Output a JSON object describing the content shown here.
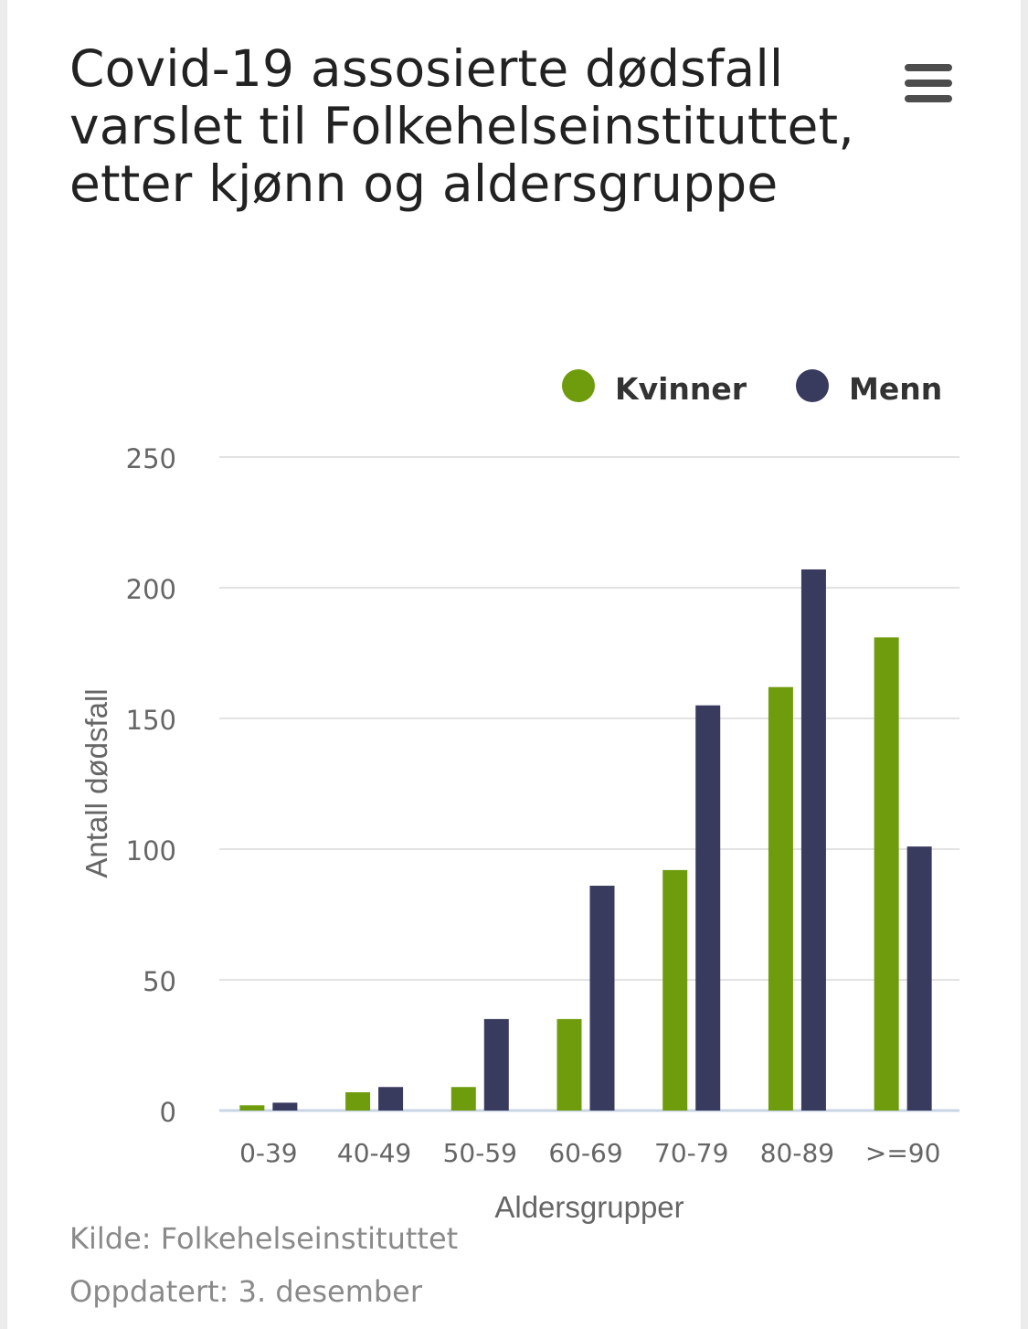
{
  "title": "Covid-19 assosierte dødsfall varslet til Folkehelseinstituttet, etter kjønn og aldersgruppe",
  "menu": {
    "icon": "hamburger-menu-icon"
  },
  "footer": {
    "source": "Kilde: Folkehelseinstituttet",
    "updated": "Oppdatert: 3. desember"
  },
  "colors": {
    "kvinner": "#6f9c0d",
    "menn": "#383a5e",
    "grid": "#e3e3e3",
    "axis": "#c9d4e4",
    "text": "#666666"
  },
  "chart_data": {
    "type": "bar",
    "title": "Covid-19 assosierte dødsfall varslet til Folkehelseinstituttet, etter kjønn og aldersgruppe",
    "xlabel": "Aldersgrupper",
    "ylabel": "Antall dødsfall",
    "categories": [
      "0-39",
      "40-49",
      "50-59",
      "60-69",
      "70-79",
      "80-89",
      ">=90"
    ],
    "series": [
      {
        "name": "Kvinner",
        "values": [
          2,
          7,
          9,
          35,
          92,
          162,
          181
        ]
      },
      {
        "name": "Menn",
        "values": [
          3,
          9,
          35,
          86,
          155,
          207,
          101
        ]
      }
    ],
    "ylim": [
      0,
      250
    ],
    "yticks": [
      0,
      50,
      100,
      150,
      200,
      250
    ],
    "grid": true,
    "legend": "top-right"
  }
}
